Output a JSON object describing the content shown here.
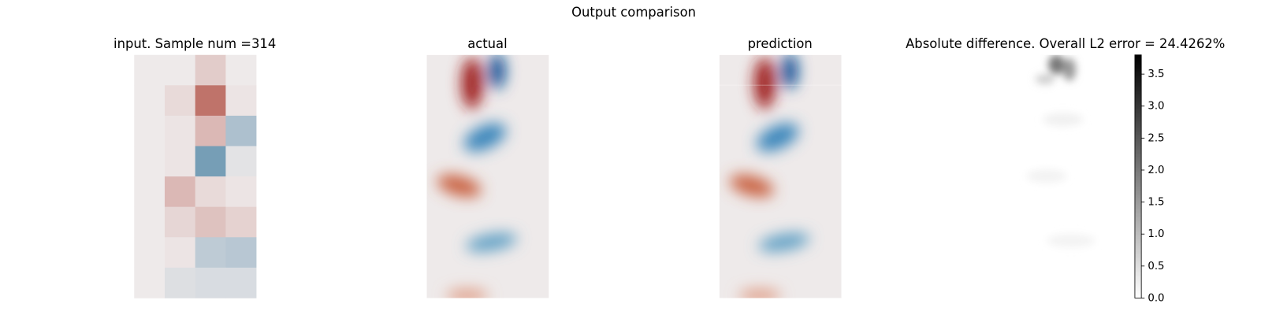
{
  "title": "Output comparison",
  "chart_data": [
    {
      "type": "heatmap",
      "title": "input. Sample num =314",
      "values": [
        [
          0,
          0,
          0.15,
          0
        ],
        [
          0,
          0.08,
          0.6,
          0.03
        ],
        [
          0,
          0.03,
          0.25,
          -0.3
        ],
        [
          0,
          0.03,
          -0.55,
          -0.05
        ],
        [
          0,
          0.25,
          0.08,
          0.03
        ],
        [
          0,
          0.1,
          0.2,
          0.12
        ],
        [
          0,
          0.03,
          -0.22,
          -0.25
        ],
        [
          0,
          -0.08,
          -0.1,
          -0.1
        ]
      ]
    },
    {
      "type": "image",
      "title": "actual"
    },
    {
      "type": "image",
      "title": "prediction"
    },
    {
      "type": "image",
      "title": "Absolute difference. Overall L2 error = 24.4262%",
      "ylim": [
        0,
        3.8
      ],
      "yticks": [
        {
          "value": 0,
          "label": "0.0"
        },
        {
          "value": 0.5,
          "label": "0.5"
        },
        {
          "value": 1,
          "label": "1.0"
        },
        {
          "value": 1.5,
          "label": "1.5"
        },
        {
          "value": 2,
          "label": "2.0"
        },
        {
          "value": 2.5,
          "label": "2.5"
        },
        {
          "value": 3,
          "label": "3.0"
        },
        {
          "value": 3.5,
          "label": "3.5"
        }
      ]
    }
  ]
}
